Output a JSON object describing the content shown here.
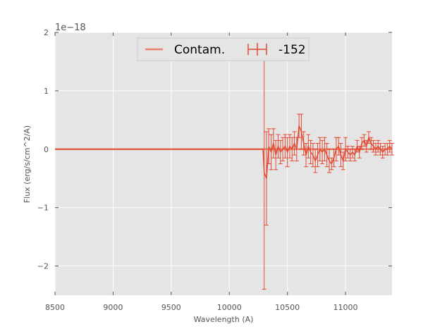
{
  "chart_data": {
    "type": "line",
    "title": "",
    "xlabel": "Wavelength (A)",
    "ylabel": "Flux (erg/s/cm^2/A)",
    "offset_label": "1e−18",
    "xlim": [
      8500,
      11400
    ],
    "ylim": [
      -2.5,
      2.0
    ],
    "x_ticks": [
      8500,
      9000,
      9500,
      10000,
      10500,
      11000
    ],
    "x_tick_labels": [
      "8500",
      "9000",
      "9500",
      "10000",
      "10500",
      "11000"
    ],
    "y_ticks": [
      -2,
      -1,
      0,
      1,
      2
    ],
    "y_tick_labels": [
      "−2",
      "−1",
      "0",
      "1",
      "2"
    ],
    "grid": true,
    "legend_position": "upper center",
    "colors": {
      "contam": "#e8846d",
      "spectrum": "#e24a33",
      "background": "#e5e5e5",
      "grid": "#ffffff"
    },
    "series": [
      {
        "name": "Contam.",
        "style": "line",
        "x": [
          8500,
          11400
        ],
        "y": [
          0,
          0
        ]
      },
      {
        "name": "-152",
        "style": "errorbar",
        "x": [
          8500,
          10290,
          10300,
          10320,
          10340,
          10360,
          10380,
          10400,
          10420,
          10440,
          10460,
          10480,
          10500,
          10520,
          10540,
          10560,
          10580,
          10600,
          10620,
          10640,
          10660,
          10680,
          10700,
          10720,
          10740,
          10760,
          10780,
          10800,
          10820,
          10840,
          10860,
          10880,
          10900,
          10920,
          10940,
          10960,
          10980,
          11000,
          11020,
          11040,
          11060,
          11080,
          11100,
          11120,
          11140,
          11160,
          11180,
          11200,
          11220,
          11240,
          11260,
          11280,
          11300,
          11320,
          11340,
          11360,
          11380,
          11400
        ],
        "y": [
          0,
          0,
          -0.4,
          -0.5,
          0.05,
          -0.05,
          0.1,
          -0.1,
          0.05,
          -0.05,
          0.0,
          0.05,
          -0.05,
          0.05,
          0.0,
          0.1,
          0.0,
          0.4,
          0.3,
          0.1,
          -0.1,
          0.05,
          -0.05,
          -0.1,
          -0.2,
          -0.1,
          0.0,
          -0.05,
          0.0,
          -0.1,
          -0.2,
          -0.25,
          -0.15,
          0.0,
          0.05,
          -0.1,
          -0.2,
          0.0,
          -0.05,
          -0.1,
          -0.05,
          -0.1,
          0.05,
          -0.05,
          0.1,
          0.15,
          0.05,
          0.2,
          0.1,
          0.05,
          0.0,
          0.05,
          0.0,
          -0.05,
          0.0,
          0.0,
          0.05,
          0.0
        ],
        "yerr": [
          0,
          0,
          2.0,
          0.8,
          0.3,
          0.3,
          0.25,
          0.25,
          0.2,
          0.2,
          0.2,
          0.2,
          0.25,
          0.2,
          0.2,
          0.2,
          0.2,
          0.2,
          0.3,
          0.2,
          0.2,
          0.2,
          0.2,
          0.2,
          0.2,
          0.2,
          0.2,
          0.2,
          0.2,
          0.2,
          0.2,
          0.1,
          0.15,
          0.2,
          0.15,
          0.2,
          0.15,
          0.2,
          0.1,
          0.1,
          0.1,
          0.1,
          0.1,
          0.1,
          0.1,
          0.1,
          0.1,
          0.1,
          0.1,
          0.1,
          0.1,
          0.1,
          0.1,
          0.1,
          0.1,
          0.1,
          0.1,
          0.1
        ]
      }
    ]
  }
}
